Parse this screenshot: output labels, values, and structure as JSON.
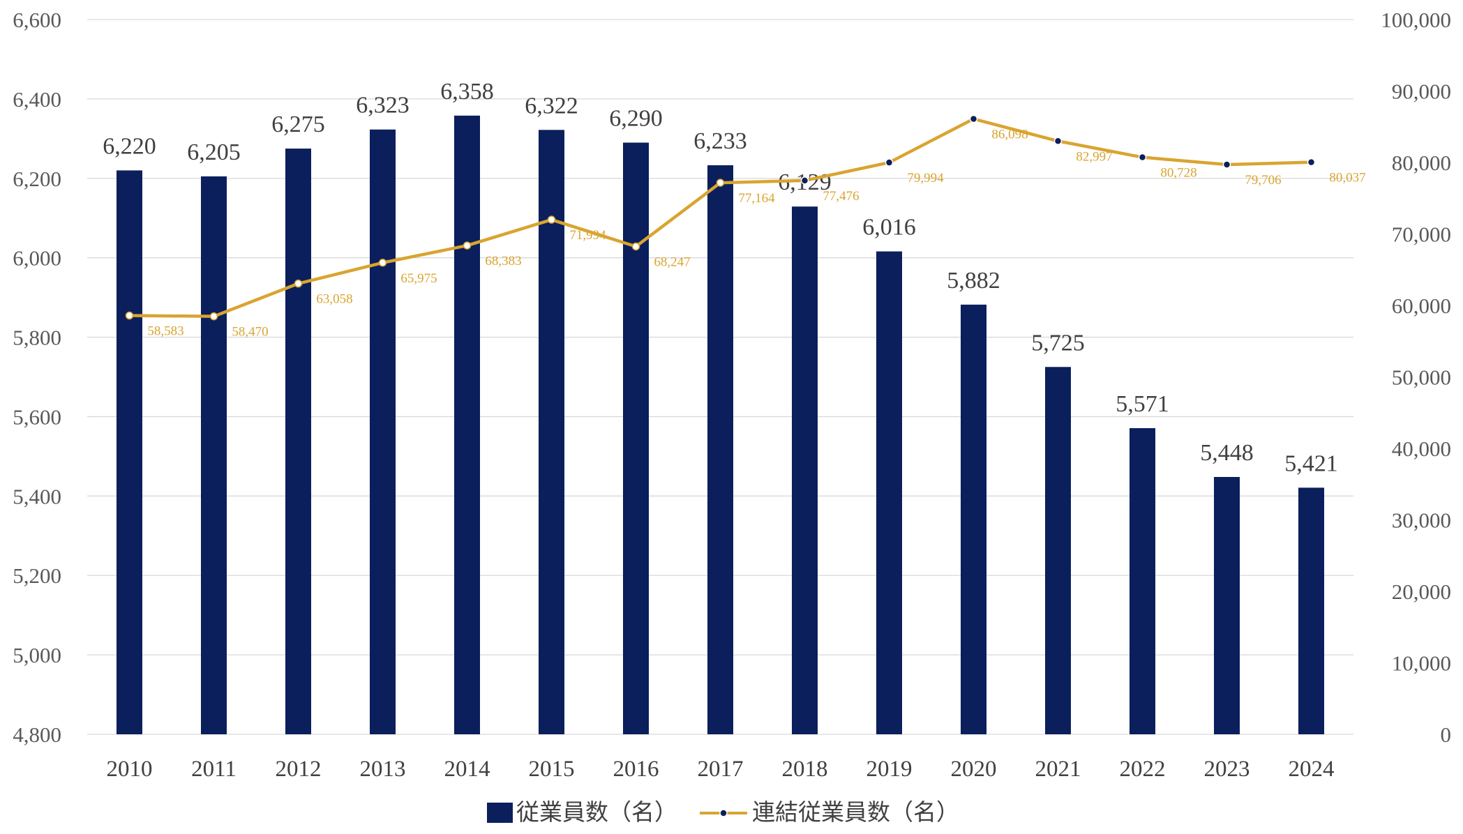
{
  "chart_data": {
    "type": "bar",
    "categories": [
      "2010",
      "2011",
      "2012",
      "2013",
      "2014",
      "2015",
      "2016",
      "2017",
      "2018",
      "2019",
      "2020",
      "2021",
      "2022",
      "2023",
      "2024"
    ],
    "series": [
      {
        "name": "従業員数（名）",
        "type": "bar",
        "axis": "left",
        "color": "#0b1f5c",
        "values": [
          6220,
          6205,
          6275,
          6323,
          6358,
          6322,
          6290,
          6233,
          6129,
          6016,
          5882,
          5725,
          5571,
          5448,
          5421
        ],
        "labels": [
          "6,220",
          "6,205",
          "6,275",
          "6,323",
          "6,358",
          "6,322",
          "6,290",
          "6,233",
          "6,129",
          "6,016",
          "5,882",
          "5,725",
          "5,571",
          "5,448",
          "5,421"
        ]
      },
      {
        "name": "連結従業員数（名）",
        "type": "line",
        "axis": "right",
        "color": "#d9a430",
        "values": [
          58583,
          58470,
          63058,
          65975,
          68383,
          71994,
          68247,
          77164,
          77476,
          79994,
          86098,
          82997,
          80728,
          79706,
          80037
        ],
        "labels": [
          "58,583",
          "58,470",
          "63,058",
          "65,975",
          "68,383",
          "71,994",
          "68,247",
          "77,164",
          "77,476",
          "79,994",
          "86,098",
          "82,997",
          "80,728",
          "79,706",
          "80,037"
        ]
      }
    ],
    "y_left": {
      "ylim": [
        4800,
        6600
      ],
      "ticks": [
        4800,
        5000,
        5200,
        5400,
        5600,
        5800,
        6000,
        6200,
        6400,
        6600
      ],
      "tick_labels": [
        "4,800",
        "5,000",
        "5,200",
        "5,400",
        "5,600",
        "5,800",
        "6,000",
        "6,200",
        "6,400",
        "6,600"
      ]
    },
    "y_right": {
      "ylim": [
        0,
        100000
      ],
      "ticks": [
        0,
        10000,
        20000,
        30000,
        40000,
        50000,
        60000,
        70000,
        80000,
        90000,
        100000
      ],
      "tick_labels": [
        "0",
        "10,000",
        "20,000",
        "30,000",
        "40,000",
        "50,000",
        "60,000",
        "70,000",
        "80,000",
        "90,000",
        "100,000"
      ]
    },
    "grid": true,
    "legend": "bottom",
    "title": "",
    "xlabel": "",
    "ylabel": ""
  },
  "colors": {
    "bar": "#0b1f5c",
    "line": "#d9a430",
    "grid": "#d9d9d9",
    "marker_fill_light": "#ffffff",
    "marker_fill_dark": "#0b1f5c"
  },
  "legend": {
    "bar_label": "従業員数（名）",
    "line_label": "連結従業員数（名）"
  }
}
